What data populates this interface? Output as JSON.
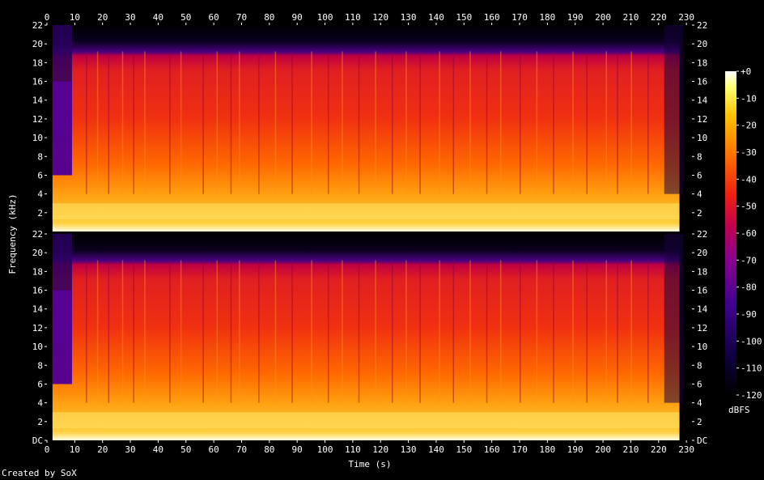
{
  "chart_data": {
    "type": "heatmap",
    "title": "",
    "xlabel": "Time (s)",
    "ylabel": "Frequency (kHz)",
    "xlim": [
      0,
      232
    ],
    "ylim": [
      0,
      22
    ],
    "x_ticks": [
      "0",
      "10",
      "20",
      "30",
      "40",
      "50",
      "60",
      "70",
      "80",
      "90",
      "100",
      "110",
      "120",
      "130",
      "140",
      "150",
      "160",
      "170",
      "180",
      "190",
      "200",
      "210",
      "220",
      "230"
    ],
    "y_ticks_top": [
      "22",
      "20",
      "18",
      "16",
      "14",
      "12",
      "10",
      "8",
      "6",
      "4",
      "2"
    ],
    "y_ticks_bottom": [
      "22",
      "20",
      "18",
      "16",
      "14",
      "12",
      "10",
      "8",
      "6",
      "4",
      "2",
      "DC"
    ],
    "channels": 2,
    "colorbar": {
      "label": "dBFS",
      "ticks": [
        "+0",
        "-10",
        "-20",
        "-30",
        "-40",
        "-50",
        "-60",
        "-70",
        "-80",
        "-90",
        "-100",
        "-110",
        "-120"
      ],
      "range": [
        -120,
        0
      ]
    },
    "band_cutoff_khz": 19,
    "colors": [
      "#000000",
      "#180040",
      "#4a0080",
      "#8a0090",
      "#c00050",
      "#f02010",
      "#ff7000",
      "#ffc000",
      "#ffff60",
      "#ffffff"
    ]
  },
  "footer": "Created by SoX"
}
